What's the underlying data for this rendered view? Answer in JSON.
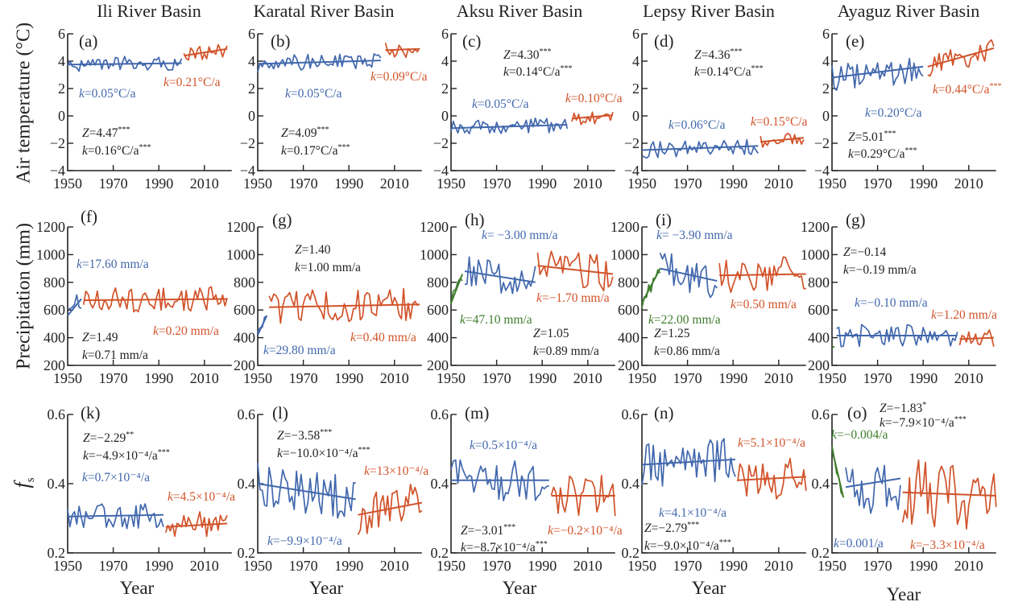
{
  "figure": {
    "columns": [
      "Ili River Basin",
      "Karatal River Basin",
      "Aksu River Basin",
      "Lepsy River Basin",
      "Ayaguz River Basin"
    ],
    "ylabels": [
      "Air temperature (°C)",
      "Precipitation (mm)"
    ],
    "fs_label": {
      "main": "f",
      "sub": "s"
    },
    "xlabel": "Year"
  },
  "colors": {
    "blue": "#4268ad",
    "red": "#d1532a",
    "green": "#3f7d2e",
    "black": "#222222"
  },
  "axes": {
    "xticks": [
      "1950",
      "1970",
      "1990",
      "2010"
    ],
    "rows": [
      {
        "yticks": [
          "6",
          "4",
          "2",
          "0",
          "−2",
          "−4"
        ],
        "ylim": [
          -4,
          6
        ],
        "tickvals": [
          6,
          4,
          2,
          0,
          -2,
          -4
        ]
      },
      {
        "yticks": [
          "1200",
          "1000",
          "800",
          "600",
          "400",
          "200"
        ],
        "ylim": [
          200,
          1200
        ],
        "tickvals": [
          1200,
          1000,
          800,
          600,
          400,
          200
        ]
      },
      {
        "yticks": [
          "0.6",
          "0.4",
          "0.2"
        ],
        "ylim": [
          0.2,
          0.6
        ],
        "tickvals": [
          0.6,
          0.4,
          0.2
        ]
      }
    ]
  },
  "chart_data": [
    {
      "type": "line",
      "label": "(a)",
      "title": "Ili River Basin",
      "xlim": [
        1950,
        2022
      ],
      "segments": [
        {
          "color": "blue",
          "years": [
            1950,
            2000
          ],
          "trend": [
            3.75,
            3.85
          ],
          "amplitude": 0.55
        },
        {
          "color": "red",
          "years": [
            2001,
            2020
          ],
          "trend": [
            4.4,
            4.9
          ],
          "amplitude": 0.55
        }
      ],
      "annotations": [
        {
          "var": "k",
          "text": "=0.05°C/a",
          "sup": "",
          "color": "blue"
        },
        {
          "var": "k",
          "text": "=0.21°C/a",
          "sup": "",
          "color": "red"
        },
        {
          "var": "Z",
          "text": "=4.47",
          "sup": "***",
          "color": "black"
        },
        {
          "var": "k",
          "text": "=0.16°C/a",
          "sup": "***",
          "color": "black"
        }
      ]
    },
    {
      "type": "line",
      "label": "(b)",
      "title": "Karatal River Basin",
      "xlim": [
        1950,
        2022
      ],
      "segments": [
        {
          "color": "blue",
          "years": [
            1950,
            2004
          ],
          "trend": [
            3.8,
            4.05
          ],
          "amplitude": 0.6
        },
        {
          "color": "red",
          "years": [
            2006,
            2021
          ],
          "trend": [
            4.8,
            4.9
          ],
          "amplitude": 0.6
        }
      ],
      "annotations": [
        {
          "var": "k",
          "text": "=0.05°C/a",
          "sup": "",
          "color": "blue"
        },
        {
          "var": "k",
          "text": "=0.09°C/a",
          "sup": "",
          "color": "red"
        },
        {
          "var": "Z",
          "text": "=4.09",
          "sup": "***",
          "color": "black"
        },
        {
          "var": "k",
          "text": "=0.17°C/a",
          "sup": "***",
          "color": "black"
        }
      ]
    },
    {
      "type": "line",
      "label": "(c)",
      "title": "Aksu River Basin",
      "xlim": [
        1950,
        2022
      ],
      "segments": [
        {
          "color": "blue",
          "years": [
            1950,
            2001
          ],
          "trend": [
            -0.9,
            -0.65
          ],
          "amplitude": 0.55
        },
        {
          "color": "red",
          "years": [
            2003,
            2021
          ],
          "trend": [
            -0.2,
            0.05
          ],
          "amplitude": 0.55
        }
      ],
      "annotations": [
        {
          "var": "Z",
          "text": "=4.30",
          "sup": "***",
          "color": "black"
        },
        {
          "var": "k",
          "text": "=0.14°C/a",
          "sup": "***",
          "color": "black"
        },
        {
          "var": "k",
          "text": "=0.05°C/a",
          "sup": "",
          "color": "blue"
        },
        {
          "var": "k",
          "text": "=0.10°C/a",
          "sup": "",
          "color": "red"
        }
      ]
    },
    {
      "type": "line",
      "label": "(d)",
      "title": "Lepsy River Basin",
      "xlim": [
        1950,
        2022
      ],
      "segments": [
        {
          "color": "blue",
          "years": [
            1950,
            2001
          ],
          "trend": [
            -2.5,
            -2.2
          ],
          "amplitude": 0.6
        },
        {
          "color": "red",
          "years": [
            2002,
            2021
          ],
          "trend": [
            -1.9,
            -1.6
          ],
          "amplitude": 0.55
        }
      ],
      "annotations": [
        {
          "var": "Z",
          "text": "=4.36",
          "sup": "***",
          "color": "black"
        },
        {
          "var": "k",
          "text": "=0.14°C/a",
          "sup": "***",
          "color": "black"
        },
        {
          "var": "k",
          "text": "=0.06°C/a",
          "sup": "",
          "color": "blue"
        },
        {
          "var": "k",
          "text": "=0.15°C/a",
          "sup": "",
          "color": "red"
        }
      ]
    },
    {
      "type": "line",
      "label": "(e)",
      "title": "Ayaguz River Basin",
      "xlim": [
        1950,
        2022
      ],
      "segments": [
        {
          "color": "blue",
          "years": [
            1950,
            1990
          ],
          "trend": [
            2.8,
            3.6
          ],
          "amplitude": 1.1
        },
        {
          "color": "red",
          "years": [
            1992,
            2021
          ],
          "trend": [
            3.6,
            4.95
          ],
          "amplitude": 0.9
        }
      ],
      "annotations": [
        {
          "var": "k",
          "text": "=0.44°C/a",
          "sup": "***",
          "color": "red"
        },
        {
          "var": "k",
          "text": "=0.20°C/a",
          "sup": "",
          "color": "blue"
        },
        {
          "var": "Z",
          "text": "=5.01",
          "sup": "***",
          "color": "black"
        },
        {
          "var": "k",
          "text": "=0.29°C/a",
          "sup": "***",
          "color": "black"
        }
      ]
    },
    {
      "type": "line",
      "label": "(f)",
      "title": "Ili River Basin",
      "xlim": [
        1950,
        2022
      ],
      "segments": [
        {
          "color": "blue",
          "years": [
            1950,
            1956
          ],
          "trend": [
            560,
            680
          ],
          "amplitude": 70
        },
        {
          "color": "red",
          "years": [
            1957,
            2020
          ],
          "trend": [
            670,
            680
          ],
          "amplitude": 90
        }
      ],
      "annotations": [
        {
          "var": "k",
          "text": "=17.60 mm/a",
          "sup": "",
          "color": "blue"
        },
        {
          "var": "k",
          "text": "=0.20 mm/a",
          "sup": "",
          "color": "red"
        },
        {
          "var": "Z",
          "text": "=1.49",
          "sup": "",
          "color": "black"
        },
        {
          "var": "k",
          "text": "=0.71 mm/a",
          "sup": "",
          "color": "black"
        }
      ]
    },
    {
      "type": "line",
      "label": "(g)",
      "title": "Karatal River Basin",
      "xlim": [
        1950,
        2022
      ],
      "segments": [
        {
          "color": "blue",
          "years": [
            1950,
            1954
          ],
          "trend": [
            420,
            560
          ],
          "amplitude": 50
        },
        {
          "color": "red",
          "years": [
            1955,
            2021
          ],
          "trend": [
            620,
            640
          ],
          "amplitude": 120
        }
      ],
      "annotations": [
        {
          "var": "Z",
          "text": "=1.40",
          "sup": "",
          "color": "black"
        },
        {
          "var": "k",
          "text": "=1.00 mm/a",
          "sup": "",
          "color": "black"
        },
        {
          "var": "k",
          "text": "=0.40 mm/a",
          "sup": "",
          "color": "red"
        },
        {
          "var": "k",
          "text": "=29.80 mm/a",
          "sup": "",
          "color": "blue"
        }
      ]
    },
    {
      "type": "line",
      "label": "(h)",
      "title": "Aksu River Basin",
      "xlim": [
        1950,
        2022
      ],
      "segments": [
        {
          "color": "green",
          "years": [
            1950,
            1955
          ],
          "trend": [
            650,
            860
          ],
          "amplitude": 60
        },
        {
          "color": "blue",
          "years": [
            1956,
            1987
          ],
          "trend": [
            880,
            800
          ],
          "amplitude": 130
        },
        {
          "color": "red",
          "years": [
            1988,
            2021
          ],
          "trend": [
            920,
            860
          ],
          "amplitude": 130
        }
      ],
      "annotations": [
        {
          "var": "k",
          "text": "= −3.00 mm/a",
          "sup": "",
          "color": "blue"
        },
        {
          "var": "k",
          "text": "=−1.70 mm/a",
          "sup": "",
          "color": "red"
        },
        {
          "var": "k",
          "text": "=47.10 mm/a",
          "sup": "",
          "color": "green"
        },
        {
          "var": "Z",
          "text": "=1.05",
          "sup": "",
          "color": "black"
        },
        {
          "var": "k",
          "text": "=0.89 mm/a",
          "sup": "",
          "color": "black"
        }
      ]
    },
    {
      "type": "line",
      "label": "(i)",
      "title": "Lepsy River Basin",
      "xlim": [
        1950,
        2022
      ],
      "segments": [
        {
          "color": "green",
          "years": [
            1950,
            1958
          ],
          "trend": [
            650,
            900
          ],
          "amplitude": 60
        },
        {
          "color": "blue",
          "years": [
            1958,
            1983
          ],
          "trend": [
            900,
            810
          ],
          "amplitude": 130
        },
        {
          "color": "red",
          "years": [
            1984,
            2022
          ],
          "trend": [
            850,
            860
          ],
          "amplitude": 130
        }
      ],
      "annotations": [
        {
          "var": "k",
          "text": "= −3.90 mm/a",
          "sup": "",
          "color": "blue"
        },
        {
          "var": "k",
          "text": "=0.50 mm/a",
          "sup": "",
          "color": "red"
        },
        {
          "var": "k",
          "text": "=22.00 mm/a",
          "sup": "",
          "color": "green"
        },
        {
          "var": "Z",
          "text": "=1.25",
          "sup": "",
          "color": "black"
        },
        {
          "var": "k",
          "text": "=0.86 mm/a",
          "sup": "",
          "color": "black"
        }
      ]
    },
    {
      "type": "line",
      "label": "(g)",
      "title": "Ayaguz River Basin",
      "xlim": [
        1950,
        2022
      ],
      "segments": [
        {
          "color": "green",
          "years": [
            1950,
            1951
          ],
          "trend": [
            330,
            335
          ],
          "amplitude": 5
        },
        {
          "color": "blue",
          "years": [
            1952,
            2005
          ],
          "trend": [
            415,
            415
          ],
          "amplitude": 80
        },
        {
          "color": "red",
          "years": [
            2006,
            2021
          ],
          "trend": [
            390,
            400
          ],
          "amplitude": 70
        }
      ],
      "annotations": [
        {
          "var": "Z",
          "text": "=−0.14",
          "sup": "",
          "color": "black"
        },
        {
          "var": "k",
          "text": "=−0.19 mm/a",
          "sup": "",
          "color": "black"
        },
        {
          "var": "k",
          "text": "=−0.10 mm/a",
          "sup": "",
          "color": "blue"
        },
        {
          "var": "k",
          "text": "=1.20 mm/a",
          "sup": "",
          "color": "red"
        }
      ]
    },
    {
      "type": "line",
      "label": "(k)",
      "title": "Ili River Basin",
      "xlim": [
        1950,
        2022
      ],
      "segments": [
        {
          "color": "blue",
          "years": [
            1950,
            1992
          ],
          "trend": [
            0.305,
            0.31
          ],
          "amplitude": 0.04
        },
        {
          "color": "red",
          "years": [
            1993,
            2020
          ],
          "trend": [
            0.275,
            0.285
          ],
          "amplitude": 0.04
        }
      ],
      "annotations": [
        {
          "var": "Z",
          "text": "=−2.29",
          "sup": "**",
          "color": "black"
        },
        {
          "var": "k",
          "text": "=−4.9×10⁻⁴/a",
          "sup": "***",
          "color": "black"
        },
        {
          "var": "k",
          "text": "=0.7×10⁻⁴/a",
          "sup": "",
          "color": "blue"
        },
        {
          "var": "k",
          "text": "=4.5×10⁻⁴/a",
          "sup": "",
          "color": "red"
        }
      ]
    },
    {
      "type": "line",
      "label": "(l)",
      "title": "Karatal River Basin",
      "xlim": [
        1950,
        2022
      ],
      "segments": [
        {
          "color": "blue",
          "years": [
            1950,
            1993
          ],
          "trend": [
            0.4,
            0.355
          ],
          "amplitude": 0.065
        },
        {
          "color": "red",
          "years": [
            1994,
            2022
          ],
          "trend": [
            0.31,
            0.345
          ],
          "amplitude": 0.06
        }
      ],
      "annotations": [
        {
          "var": "Z",
          "text": "=−3.58",
          "sup": "***",
          "color": "black"
        },
        {
          "var": "k",
          "text": "=−10.0×10⁻⁴/a",
          "sup": "***",
          "color": "black"
        },
        {
          "var": "k",
          "text": "=13×10⁻⁴/a",
          "sup": "",
          "color": "red"
        },
        {
          "var": "k",
          "text": "=−9.9×10⁻⁴/a",
          "sup": "",
          "color": "blue"
        }
      ]
    },
    {
      "type": "line",
      "label": "(m)",
      "title": "Aksu River Basin",
      "xlim": [
        1950,
        2022
      ],
      "segments": [
        {
          "color": "blue",
          "years": [
            1950,
            1993
          ],
          "trend": [
            0.41,
            0.41
          ],
          "amplitude": 0.06
        },
        {
          "color": "red",
          "years": [
            1994,
            2022
          ],
          "trend": [
            0.365,
            0.365
          ],
          "amplitude": 0.06
        }
      ],
      "annotations": [
        {
          "var": "k",
          "text": "=0.5×10⁻⁴/a",
          "sup": "",
          "color": "blue"
        },
        {
          "var": "Z",
          "text": "=−3.01",
          "sup": "***",
          "color": "black"
        },
        {
          "var": "k",
          "text": "=−8.7×10⁻⁴/a",
          "sup": "***",
          "color": "black"
        },
        {
          "var": "k",
          "text": "=−0.2×10⁻⁴/a",
          "sup": "",
          "color": "red"
        }
      ]
    },
    {
      "type": "line",
      "label": "(n)",
      "title": "Lepsy River Basin",
      "xlim": [
        1950,
        2022
      ],
      "segments": [
        {
          "color": "blue",
          "years": [
            1950,
            1991
          ],
          "trend": [
            0.455,
            0.47
          ],
          "amplitude": 0.065
        },
        {
          "color": "red",
          "years": [
            1992,
            2022
          ],
          "trend": [
            0.41,
            0.42
          ],
          "amplitude": 0.06
        }
      ],
      "annotations": [
        {
          "var": "k",
          "text": "=5.1×10⁻⁴/a",
          "sup": "",
          "color": "red"
        },
        {
          "var": "k",
          "text": "=4.1×10⁻⁴/a",
          "sup": "",
          "color": "blue"
        },
        {
          "var": "Z",
          "text": "=−2.79",
          "sup": "***",
          "color": "black"
        },
        {
          "var": "k",
          "text": "=−9.0×10⁻⁴/a",
          "sup": "***",
          "color": "black"
        }
      ]
    },
    {
      "type": "line",
      "label": "(o)",
      "title": "Ayaguz River Basin",
      "xlim": [
        1950,
        2022
      ],
      "segments": [
        {
          "color": "green",
          "years": [
            1950,
            1955
          ],
          "trend": [
            0.5,
            0.36
          ],
          "amplitude": 0.02
        },
        {
          "color": "blue",
          "years": [
            1956,
            1980
          ],
          "trend": [
            0.39,
            0.415
          ],
          "amplitude": 0.09
        },
        {
          "color": "red",
          "years": [
            1981,
            2022
          ],
          "trend": [
            0.375,
            0.365
          ],
          "amplitude": 0.1
        }
      ],
      "annotations": [
        {
          "var": "Z",
          "text": "=−1.83",
          "sup": "*",
          "color": "black"
        },
        {
          "var": "k",
          "text": "=−7.9×10⁻⁴/a",
          "sup": "***",
          "color": "black"
        },
        {
          "var": "k",
          "text": "=−0.004/a",
          "sup": "",
          "color": "green"
        },
        {
          "var": "k",
          "text": "=0.001/a",
          "sup": "",
          "color": "blue"
        },
        {
          "var": "k",
          "text": "=−3.3×10⁻⁴/a",
          "sup": "",
          "color": "red"
        }
      ]
    }
  ]
}
